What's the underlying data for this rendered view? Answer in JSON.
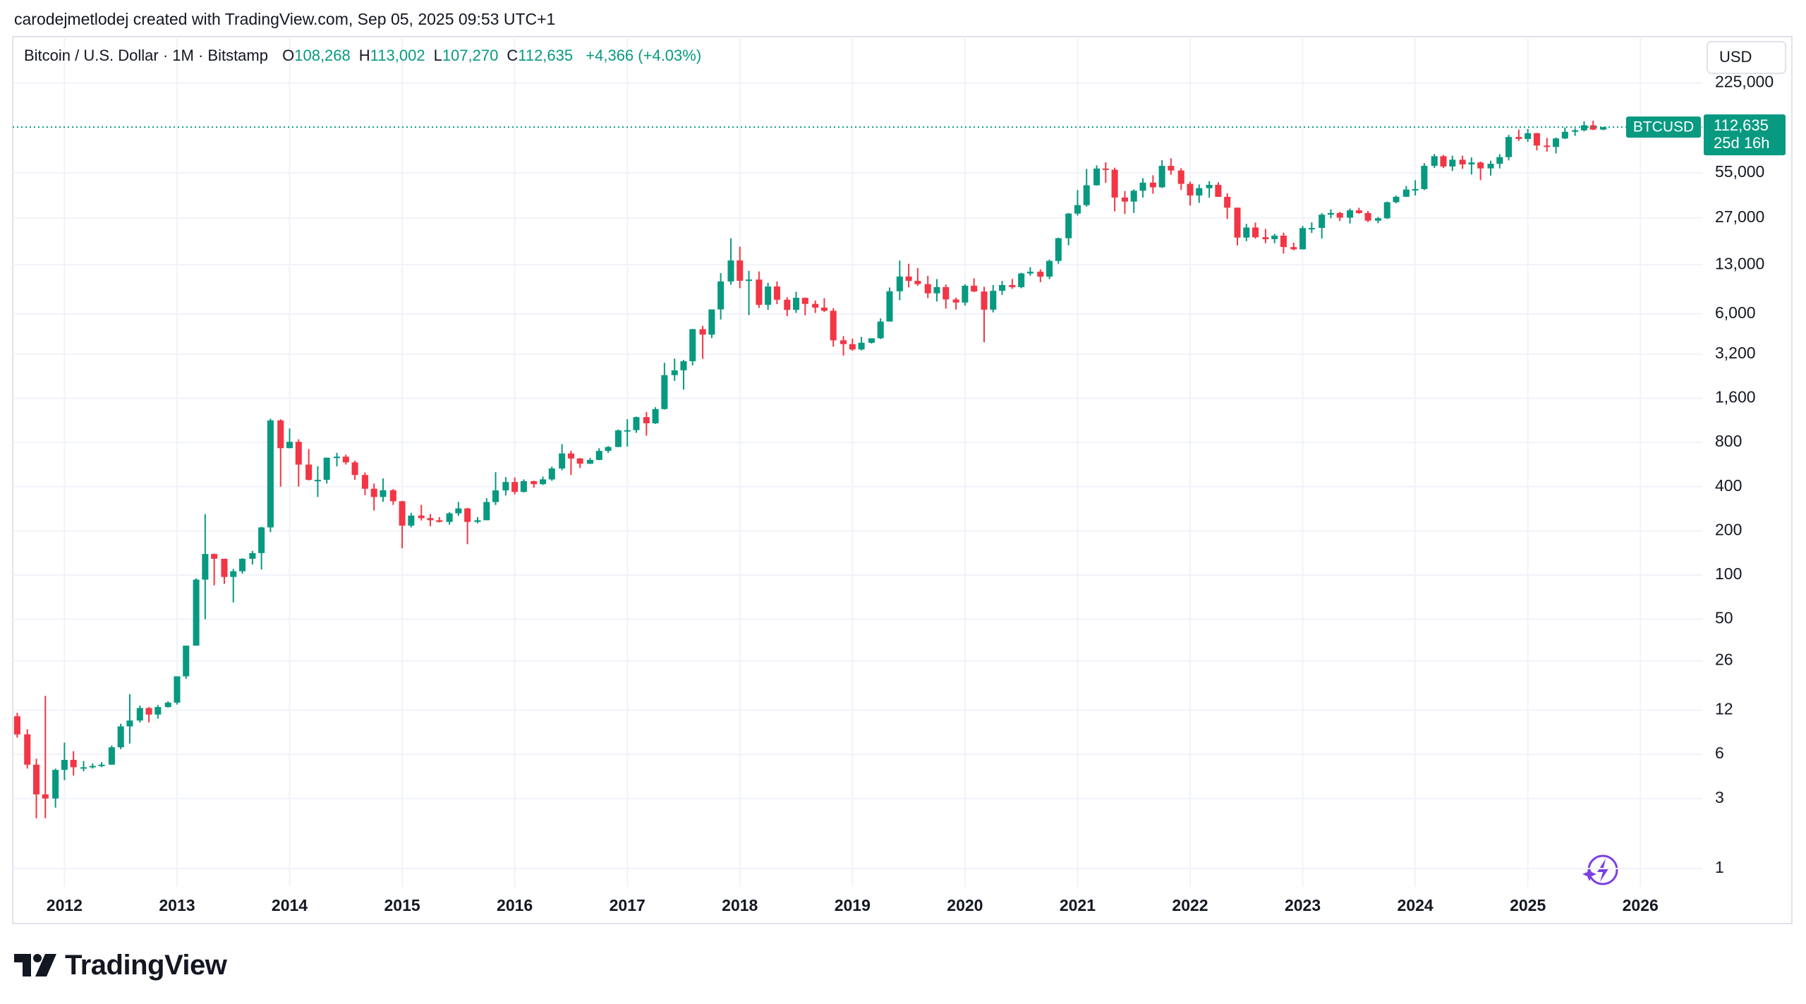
{
  "header": "carodejmetlodej created with TradingView.com, Sep 05, 2025 09:53 UTC+1",
  "footer": {
    "brand": "TradingView"
  },
  "chart_data": {
    "type": "candlestick",
    "legend": {
      "title": "Bitcoin / U.S. Dollar · 1M · Bitstamp",
      "fields": [
        {
          "key": "O",
          "value": "108,268"
        },
        {
          "key": "H",
          "value": "113,002"
        },
        {
          "key": "L",
          "value": "107,270"
        },
        {
          "key": "C",
          "value": "112,635"
        }
      ],
      "change": "+4,366 (+4.03%)"
    },
    "currency": "USD",
    "last_price_label": {
      "symbol": "BTCUSD",
      "price": "112,635",
      "countdown": "25d 16h"
    },
    "up_color": "#089981",
    "down_color": "#f23645",
    "log_scale": true,
    "grid": true,
    "xlim": [
      2011.54,
      2026.55
    ],
    "xticks": [
      2012,
      2013,
      2014,
      2015,
      2016,
      2017,
      2018,
      2019,
      2020,
      2021,
      2022,
      2023,
      2024,
      2025,
      2026
    ],
    "ylim": [
      0.75,
      440000
    ],
    "yticks": [
      1,
      3,
      6,
      12,
      26,
      50,
      100,
      200,
      400,
      800,
      {
        "value": 1600,
        "label": "1,600"
      },
      {
        "value": 3200,
        "label": "3,200"
      },
      {
        "value": 6000,
        "label": "6,000"
      },
      {
        "value": 13000,
        "label": "13,000"
      },
      {
        "value": 27000,
        "label": "27,000"
      },
      {
        "value": 55000,
        "label": "55,000"
      },
      {
        "value": 225000,
        "label": "225,000"
      }
    ],
    "x": [
      2011.58,
      2011.67,
      2011.75,
      2011.83,
      2011.92,
      2012,
      2012.08,
      2012.17,
      2012.25,
      2012.33,
      2012.42,
      2012.5,
      2012.58,
      2012.67,
      2012.75,
      2012.83,
      2012.92,
      2013,
      2013.08,
      2013.17,
      2013.25,
      2013.33,
      2013.42,
      2013.5,
      2013.58,
      2013.67,
      2013.75,
      2013.83,
      2013.92,
      2014,
      2014.08,
      2014.17,
      2014.25,
      2014.33,
      2014.42,
      2014.5,
      2014.58,
      2014.67,
      2014.75,
      2014.83,
      2014.92,
      2015,
      2015.08,
      2015.17,
      2015.25,
      2015.33,
      2015.42,
      2015.5,
      2015.58,
      2015.67,
      2015.75,
      2015.83,
      2015.92,
      2016,
      2016.08,
      2016.17,
      2016.25,
      2016.33,
      2016.42,
      2016.5,
      2016.58,
      2016.67,
      2016.75,
      2016.83,
      2016.92,
      2017,
      2017.08,
      2017.17,
      2017.25,
      2017.33,
      2017.42,
      2017.5,
      2017.58,
      2017.67,
      2017.75,
      2017.83,
      2017.92,
      2018,
      2018.08,
      2018.17,
      2018.25,
      2018.33,
      2018.42,
      2018.5,
      2018.58,
      2018.67,
      2018.75,
      2018.83,
      2018.92,
      2019,
      2019.08,
      2019.17,
      2019.25,
      2019.33,
      2019.42,
      2019.5,
      2019.58,
      2019.67,
      2019.75,
      2019.83,
      2019.92,
      2020,
      2020.08,
      2020.17,
      2020.25,
      2020.33,
      2020.42,
      2020.5,
      2020.58,
      2020.67,
      2020.75,
      2020.83,
      2020.92,
      2021,
      2021.08,
      2021.17,
      2021.25,
      2021.33,
      2021.42,
      2021.5,
      2021.58,
      2021.67,
      2021.75,
      2021.83,
      2021.92,
      2022,
      2022.08,
      2022.17,
      2022.25,
      2022.33,
      2022.42,
      2022.5,
      2022.58,
      2022.67,
      2022.75,
      2022.83,
      2022.92,
      2023,
      2023.08,
      2023.17,
      2023.25,
      2023.33,
      2023.42,
      2023.5,
      2023.58,
      2023.67,
      2023.75,
      2023.83,
      2023.92,
      2024,
      2024.08,
      2024.17,
      2024.25,
      2024.33,
      2024.42,
      2024.5,
      2024.58,
      2024.67,
      2024.75,
      2024.83,
      2024.92,
      2025,
      2025.08,
      2025.17,
      2025.25,
      2025.33,
      2025.42,
      2025.5,
      2025.58,
      2025.67
    ],
    "open": [
      10.9,
      8.2,
      5.1,
      3.2,
      3.0,
      4.7,
      5.5,
      4.9,
      4.9,
      5.0,
      5.1,
      6.7,
      9.3,
      10.2,
      12.4,
      11.2,
      12.6,
      13.5,
      20.4,
      33,
      93,
      139,
      129,
      97,
      106,
      129,
      141,
      211,
      1130,
      731,
      808,
      565,
      445,
      445,
      630,
      640,
      585,
      480,
      387,
      340,
      378,
      318,
      217,
      254,
      244,
      236,
      230,
      263,
      284,
      230,
      236,
      314,
      377,
      430,
      368,
      436,
      416,
      448,
      532,
      673,
      622,
      573,
      608,
      700,
      745,
      966,
      970,
      1190,
      1080,
      1350,
      2300,
      2480,
      2860,
      4730,
      4340,
      6450,
      10000,
      13900,
      10100,
      10300,
      6930,
      9240,
      7500,
      6400,
      7730,
      7030,
      6630,
      6310,
      3970,
      3740,
      3440,
      3820,
      4100,
      5330,
      8570,
      10800,
      10090,
      9590,
      8300,
      9150,
      7540,
      7180,
      9350,
      8540,
      6420,
      8630,
      9450,
      9140,
      11340,
      11650,
      10780,
      13800,
      19700,
      28990,
      33100,
      45200,
      58800,
      57700,
      37300,
      35000,
      41500,
      47100,
      43800,
      61300,
      57000,
      46200,
      38500,
      43200,
      45500,
      37700,
      31800,
      19900,
      23300,
      20000,
      19400,
      20500,
      17150,
      16550,
      23100,
      23150,
      28500,
      29250,
      27200,
      30500,
      29250,
      25950,
      26950,
      34650,
      37750,
      42250,
      42600,
      61300,
      71300,
      60700,
      67500,
      62700,
      64600,
      58900,
      63300,
      70300,
      96400,
      93500,
      102400,
      84300,
      82500,
      94200,
      104600,
      107100,
      115800,
      108268
    ],
    "high": [
      11.5,
      8.9,
      5.6,
      15,
      4.8,
      7.2,
      6.3,
      5.4,
      5.2,
      5.3,
      6.9,
      9.7,
      15.4,
      12.9,
      12.6,
      13.0,
      13.8,
      20.4,
      33,
      95,
      260,
      140,
      129,
      110,
      130,
      146,
      213,
      1163,
      1150,
      995,
      840,
      720,
      550,
      630,
      680,
      660,
      600,
      500,
      420,
      455,
      385,
      320,
      265,
      300,
      260,
      248,
      268,
      315,
      287,
      248,
      334,
      502,
      465,
      462,
      448,
      439,
      468,
      548,
      779,
      703,
      627,
      627,
      730,
      755,
      980,
      1150,
      1200,
      1290,
      1390,
      2790,
      2980,
      2920,
      4760,
      4980,
      6450,
      11400,
      19666,
      17250,
      11800,
      11700,
      9800,
      10000,
      7800,
      8500,
      7760,
      7410,
      7690,
      6580,
      4240,
      4080,
      4190,
      4100,
      5600,
      9090,
      13880,
      13200,
      12330,
      10930,
      10370,
      9520,
      7750,
      9570,
      10500,
      9190,
      9460,
      10080,
      10400,
      11450,
      12480,
      12070,
      14100,
      19870,
      29300,
      41900,
      58350,
      61800,
      64900,
      59600,
      41300,
      42400,
      50500,
      52900,
      67000,
      69000,
      59100,
      47900,
      45800,
      48200,
      47400,
      39900,
      31900,
      24700,
      25200,
      22800,
      21100,
      21500,
      18400,
      23900,
      25250,
      29200,
      31000,
      29850,
      31400,
      31800,
      30200,
      27500,
      35000,
      38450,
      44700,
      48950,
      64000,
      73800,
      72800,
      71900,
      71900,
      70000,
      65600,
      66500,
      73600,
      99600,
      108300,
      109300,
      102800,
      95000,
      95700,
      112000,
      110500,
      123200,
      124500,
      113002
    ],
    "low": [
      7.8,
      4.8,
      2.2,
      2.2,
      2.6,
      4.0,
      4.3,
      4.6,
      4.8,
      4.9,
      5.1,
      6.5,
      7.1,
      9.9,
      9.9,
      10.5,
      12.5,
      13.1,
      19.6,
      33,
      50,
      85,
      87,
      65,
      102,
      118,
      109,
      196,
      400,
      730,
      400,
      440,
      340,
      420,
      550,
      565,
      445,
      350,
      275,
      315,
      300,
      152,
      211,
      235,
      215,
      228,
      220,
      253,
      162,
      225,
      236,
      300,
      348,
      354,
      365,
      393,
      410,
      438,
      517,
      480,
      535,
      570,
      605,
      680,
      743,
      750,
      930,
      890,
      1070,
      1340,
      2100,
      1830,
      2680,
      2970,
      4110,
      5500,
      9500,
      9000,
      5900,
      6600,
      6400,
      7000,
      5800,
      6100,
      5880,
      6100,
      6190,
      3600,
      3130,
      3370,
      3390,
      3770,
      4050,
      5330,
      7450,
      9100,
      9350,
      7700,
      7300,
      6520,
      6430,
      6850,
      8450,
      3850,
      6150,
      8100,
      8900,
      8980,
      10950,
      9880,
      10370,
      13200,
      17600,
      28100,
      32300,
      44950,
      47000,
      30000,
      28800,
      29300,
      37300,
      39600,
      43300,
      53300,
      42000,
      32900,
      34300,
      37200,
      37600,
      26600,
      17600,
      18800,
      19600,
      18200,
      18200,
      15500,
      16300,
      16500,
      21400,
      19600,
      26900,
      25800,
      24800,
      28900,
      25400,
      24900,
      26600,
      34100,
      37600,
      38500,
      41900,
      59300,
      59200,
      56600,
      58500,
      53500,
      49000,
      52600,
      58900,
      66800,
      90700,
      89300,
      78200,
      76600,
      74500,
      93400,
      98200,
      105300,
      107400,
      107270
    ],
    "close": [
      8.2,
      5.1,
      3.2,
      3.0,
      4.7,
      5.5,
      4.9,
      4.9,
      5.0,
      5.1,
      6.7,
      9.3,
      10.2,
      12.4,
      11.2,
      12.6,
      13.5,
      20.4,
      33,
      93,
      139,
      129,
      97,
      106,
      129,
      141,
      211,
      1130,
      731,
      808,
      565,
      445,
      445,
      630,
      640,
      585,
      480,
      387,
      340,
      378,
      318,
      217,
      254,
      244,
      236,
      230,
      263,
      284,
      230,
      236,
      314,
      377,
      430,
      368,
      436,
      416,
      448,
      532,
      673,
      622,
      573,
      608,
      700,
      745,
      966,
      970,
      1190,
      1080,
      1350,
      2300,
      2480,
      2860,
      4730,
      4340,
      6450,
      10000,
      13900,
      10100,
      10300,
      6930,
      9240,
      7500,
      6400,
      7730,
      7030,
      6630,
      6310,
      3970,
      3740,
      3440,
      3820,
      4100,
      5330,
      8570,
      10800,
      10090,
      9590,
      8300,
      9150,
      7540,
      7180,
      9350,
      8540,
      6420,
      8630,
      9450,
      9140,
      11340,
      11650,
      10780,
      13800,
      19700,
      28990,
      33100,
      45200,
      58800,
      57700,
      37300,
      35000,
      41500,
      47100,
      43800,
      61300,
      57000,
      46200,
      38500,
      43200,
      45500,
      37700,
      31800,
      19900,
      23300,
      20000,
      19400,
      20500,
      17150,
      16550,
      23100,
      23150,
      28500,
      29250,
      27200,
      30500,
      29250,
      25950,
      26950,
      34650,
      37750,
      42250,
      42600,
      61300,
      71300,
      60700,
      67500,
      62700,
      64600,
      58900,
      63300,
      70300,
      96400,
      93500,
      102400,
      84300,
      82500,
      94200,
      104600,
      107100,
      115800,
      108268,
      112635
    ]
  }
}
